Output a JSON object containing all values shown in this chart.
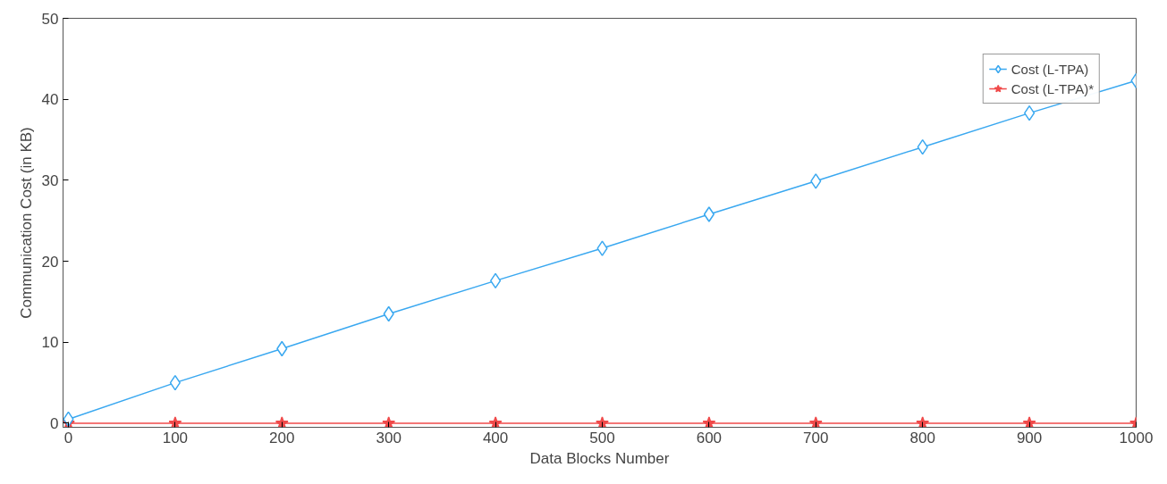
{
  "chart_data": {
    "type": "line",
    "xlabel": "Data Blocks Number",
    "ylabel": "Communication Cost (in KB)",
    "x": [
      0,
      100,
      200,
      300,
      400,
      500,
      600,
      700,
      800,
      900,
      1000
    ],
    "series": [
      {
        "name": "Cost (L-TPA)",
        "color": "#3aa8f0",
        "marker": "diamond",
        "values": [
          0.5,
          5,
          9.2,
          13.5,
          17.6,
          21.6,
          25.8,
          29.9,
          34.1,
          38.3,
          42.3
        ]
      },
      {
        "name": "Cost (L-TPA)*",
        "color": "#f04a4a",
        "marker": "star",
        "values": [
          0,
          0,
          0,
          0,
          0,
          0,
          0,
          0,
          0,
          0,
          0
        ]
      }
    ],
    "xlim": [
      -5,
      1000
    ],
    "ylim": [
      -0.5,
      50
    ],
    "xticks": [
      0,
      100,
      200,
      300,
      400,
      500,
      600,
      700,
      800,
      900,
      1000
    ],
    "yticks": [
      0,
      10,
      20,
      30,
      40,
      50
    ],
    "grid": false,
    "legend": "top right"
  }
}
